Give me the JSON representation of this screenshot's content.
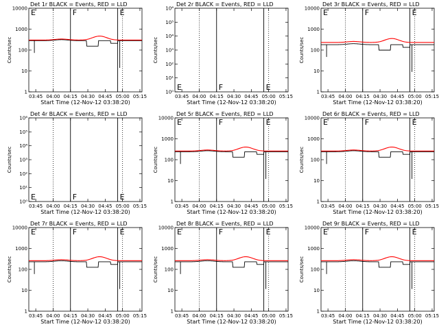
{
  "chart_data": [
    {
      "type": "line",
      "title": "Det 1r BLACK = Events, RED = LLD",
      "ylabel": "Counts/sec",
      "xlabel": "Start Time (12-Nov-12 03:38:20)",
      "xticks": [
        "03:45",
        "04:00",
        "04:15",
        "04:30",
        "04:45",
        "05:00",
        "05:15"
      ],
      "xlim": [
        -0.1,
        1.53
      ],
      "ylog": true,
      "ylim": [
        1,
        10000
      ],
      "yticks": [
        "1",
        "10",
        "100",
        "1000",
        "10000"
      ],
      "ytick_values": [
        1,
        10,
        100,
        1000,
        10000
      ],
      "dotted_lines": [
        0.25,
        1.25
      ],
      "solid_lines": [
        0.5,
        1.18
      ],
      "markers": [
        {
          "text": "E",
          "x": -0.08,
          "at": "top"
        },
        {
          "text": "F",
          "x": 0.52,
          "at": "top"
        },
        {
          "text": "E",
          "x": 1.2,
          "at": "top"
        }
      ],
      "series": [
        {
          "name": "Events",
          "color": "#000000",
          "kind": "events",
          "base": 280
        },
        {
          "name": "LLD",
          "color": "#ff0000",
          "kind": "lld",
          "base": 300
        }
      ]
    },
    {
      "type": "line",
      "title": "Det 2r BLACK = Events, RED = LLD",
      "ylabel": "Counts/sec",
      "xlabel": "Start Time (12-Nov-12 03:38:20)",
      "xticks": [
        "03:45",
        "04:00",
        "04:15",
        "04:30",
        "04:45",
        "05:00",
        "05:15"
      ],
      "xlim": [
        -0.1,
        1.53
      ],
      "ylog": true,
      "ylim": [
        1,
        1000000
      ],
      "yticks": [
        "10⁰",
        "10¹",
        "10²",
        "10³",
        "10⁴",
        "10⁵",
        "10⁶"
      ],
      "ytick_values": [
        1,
        10,
        100,
        1000,
        10000,
        100000,
        1000000
      ],
      "dotted_lines": [
        0.25,
        1.25
      ],
      "solid_lines": [
        0.5,
        1.18
      ],
      "markers": [
        {
          "text": "E",
          "x": -0.08,
          "at": "bottom"
        },
        {
          "text": "F",
          "x": 0.52,
          "at": "bottom"
        },
        {
          "text": "E",
          "x": 1.2,
          "at": "bottom"
        }
      ],
      "series": []
    },
    {
      "type": "line",
      "title": "Det 3r BLACK = Events, RED = LLD",
      "ylabel": "Counts/sec",
      "xlabel": "Start Time (12-Nov-12 03:38:20)",
      "xticks": [
        "03:45",
        "04:00",
        "04:15",
        "04:30",
        "04:45",
        "05:00",
        "05:15"
      ],
      "xlim": [
        -0.1,
        1.53
      ],
      "ylog": true,
      "ylim": [
        1,
        10000
      ],
      "yticks": [
        "1",
        "10",
        "100",
        "1000",
        "10000"
      ],
      "ytick_values": [
        1,
        10,
        100,
        1000,
        10000
      ],
      "dotted_lines": [
        0.25,
        1.25
      ],
      "solid_lines": [
        0.5,
        1.18
      ],
      "markers": [
        {
          "text": "E",
          "x": -0.08,
          "at": "top"
        },
        {
          "text": "F",
          "x": 0.52,
          "at": "top"
        },
        {
          "text": "E",
          "x": 1.2,
          "at": "top"
        }
      ],
      "series": [
        {
          "name": "Events",
          "color": "#000000",
          "kind": "events",
          "base": 180
        },
        {
          "name": "LLD",
          "color": "#ff0000",
          "kind": "lld",
          "base": 230
        }
      ]
    },
    {
      "type": "line",
      "title": "Det 4r BLACK = Events, RED = LLD",
      "ylabel": "Counts/sec",
      "xlabel": "Start Time (12-Nov-12 03:38:20)",
      "xticks": [
        "03:45",
        "04:00",
        "04:15",
        "04:30",
        "04:45",
        "05:00",
        "05:15"
      ],
      "xlim": [
        -0.1,
        1.53
      ],
      "ylog": true,
      "ylim": [
        1,
        1000000
      ],
      "yticks": [
        "10⁰",
        "10¹",
        "10²",
        "10³",
        "10⁴",
        "10⁵",
        "10⁶"
      ],
      "ytick_values": [
        1,
        10,
        100,
        1000,
        10000,
        100000,
        1000000
      ],
      "dotted_lines": [
        0.25,
        1.25
      ],
      "solid_lines": [
        0.5,
        1.18
      ],
      "markers": [
        {
          "text": "E",
          "x": -0.08,
          "at": "bottom"
        },
        {
          "text": "F",
          "x": 0.52,
          "at": "bottom"
        },
        {
          "text": "E",
          "x": 1.2,
          "at": "bottom"
        }
      ],
      "series": []
    },
    {
      "type": "line",
      "title": "Det 5r BLACK = Events, RED = LLD",
      "ylabel": "Counts/sec",
      "xlabel": "Start Time (12-Nov-12 03:38:20)",
      "xticks": [
        "03:45",
        "04:00",
        "04:15",
        "04:30",
        "04:45",
        "05:00",
        "05:15"
      ],
      "xlim": [
        -0.1,
        1.53
      ],
      "ylog": true,
      "ylim": [
        1,
        10000
      ],
      "yticks": [
        "1",
        "10",
        "100",
        "1000",
        "10000"
      ],
      "ytick_values": [
        1,
        10,
        100,
        1000,
        10000
      ],
      "dotted_lines": [
        0.25,
        1.25
      ],
      "solid_lines": [
        0.5,
        1.18
      ],
      "markers": [
        {
          "text": "E",
          "x": -0.08,
          "at": "top"
        },
        {
          "text": "F",
          "x": 0.52,
          "at": "top"
        },
        {
          "text": "E",
          "x": 1.2,
          "at": "top"
        }
      ],
      "series": [
        {
          "name": "Events",
          "color": "#000000",
          "kind": "events",
          "base": 240
        },
        {
          "name": "LLD",
          "color": "#ff0000",
          "kind": "lld",
          "base": 260
        }
      ]
    },
    {
      "type": "line",
      "title": "Det 6r BLACK = Events, RED = LLD",
      "ylabel": "Counts/sec",
      "xlabel": "Start Time (12-Nov-12 03:38:20)",
      "xticks": [
        "03:45",
        "04:00",
        "04:15",
        "04:30",
        "04:45",
        "05:00",
        "05:15"
      ],
      "xlim": [
        -0.1,
        1.53
      ],
      "ylog": true,
      "ylim": [
        1,
        10000
      ],
      "yticks": [
        "1",
        "10",
        "100",
        "1000",
        "10000"
      ],
      "ytick_values": [
        1,
        10,
        100,
        1000,
        10000
      ],
      "dotted_lines": [
        0.25,
        1.25
      ],
      "solid_lines": [
        0.5,
        1.18
      ],
      "markers": [
        {
          "text": "E",
          "x": -0.08,
          "at": "top"
        },
        {
          "text": "F",
          "x": 0.52,
          "at": "top"
        },
        {
          "text": "E",
          "x": 1.2,
          "at": "top"
        }
      ],
      "series": [
        {
          "name": "Events",
          "color": "#000000",
          "kind": "events",
          "base": 240
        },
        {
          "name": "LLD",
          "color": "#ff0000",
          "kind": "lld",
          "base": 260
        }
      ]
    },
    {
      "type": "line",
      "title": "Det 7r BLACK = Events, RED = LLD",
      "ylabel": "Counts/sec",
      "xlabel": "Start Time (12-Nov-12 03:38:20)",
      "xticks": [
        "03:45",
        "04:00",
        "04:15",
        "04:30",
        "04:45",
        "05:00",
        "05:15"
      ],
      "xlim": [
        -0.1,
        1.53
      ],
      "ylog": true,
      "ylim": [
        1,
        10000
      ],
      "yticks": [
        "1",
        "10",
        "100",
        "1000",
        "10000"
      ],
      "ytick_values": [
        1,
        10,
        100,
        1000,
        10000
      ],
      "dotted_lines": [
        0.25,
        1.25
      ],
      "solid_lines": [
        0.5,
        1.18
      ],
      "markers": [
        {
          "text": "E",
          "x": -0.08,
          "at": "top"
        },
        {
          "text": "F",
          "x": 0.52,
          "at": "top"
        },
        {
          "text": "E",
          "x": 1.2,
          "at": "top"
        }
      ],
      "series": [
        {
          "name": "Events",
          "color": "#000000",
          "kind": "events",
          "base": 230
        },
        {
          "name": "LLD",
          "color": "#ff0000",
          "kind": "lld",
          "base": 260
        }
      ]
    },
    {
      "type": "line",
      "title": "Det 8r BLACK = Events, RED = LLD",
      "ylabel": "Counts/sec",
      "xlabel": "Start Time (12-Nov-12 03:38:20)",
      "xticks": [
        "03:45",
        "04:00",
        "04:15",
        "04:30",
        "04:45",
        "05:00",
        "05:15"
      ],
      "xlim": [
        -0.1,
        1.53
      ],
      "ylog": true,
      "ylim": [
        1,
        10000
      ],
      "yticks": [
        "1",
        "10",
        "100",
        "1000",
        "10000"
      ],
      "ytick_values": [
        1,
        10,
        100,
        1000,
        10000
      ],
      "dotted_lines": [
        0.25,
        1.25
      ],
      "solid_lines": [
        0.5,
        1.18
      ],
      "markers": [
        {
          "text": "E",
          "x": -0.08,
          "at": "top"
        },
        {
          "text": "F",
          "x": 0.52,
          "at": "top"
        },
        {
          "text": "E",
          "x": 1.2,
          "at": "top"
        }
      ],
      "series": [
        {
          "name": "Events",
          "color": "#000000",
          "kind": "events",
          "base": 230
        },
        {
          "name": "LLD",
          "color": "#ff0000",
          "kind": "lld",
          "base": 260
        }
      ]
    },
    {
      "type": "line",
      "title": "Det 9r BLACK = Events, RED = LLD",
      "ylabel": "Counts/sec",
      "xlabel": "Start Time (12-Nov-12 03:38:20)",
      "xticks": [
        "03:45",
        "04:00",
        "04:15",
        "04:30",
        "04:45",
        "05:00",
        "05:15"
      ],
      "xlim": [
        -0.1,
        1.53
      ],
      "ylog": true,
      "ylim": [
        1,
        10000
      ],
      "yticks": [
        "1",
        "10",
        "100",
        "1000",
        "10000"
      ],
      "ytick_values": [
        1,
        10,
        100,
        1000,
        10000
      ],
      "dotted_lines": [
        0.25,
        1.25
      ],
      "solid_lines": [
        0.5,
        1.18
      ],
      "markers": [
        {
          "text": "E",
          "x": -0.08,
          "at": "top"
        },
        {
          "text": "F",
          "x": 0.52,
          "at": "top"
        },
        {
          "text": "E",
          "x": 1.2,
          "at": "top"
        }
      ],
      "series": [
        {
          "name": "Events",
          "color": "#000000",
          "kind": "events",
          "base": 230
        },
        {
          "name": "LLD",
          "color": "#ff0000",
          "kind": "lld",
          "base": 260
        }
      ]
    }
  ]
}
